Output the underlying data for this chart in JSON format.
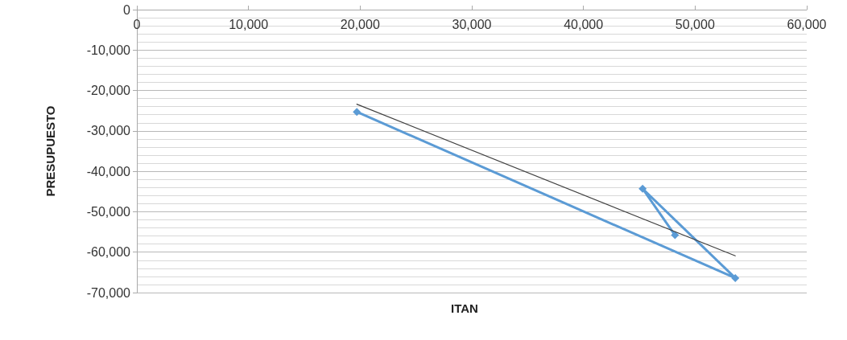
{
  "chart_data": {
    "type": "line",
    "xlabel": "ITAN",
    "ylabel": "PRESUPUESTO",
    "series": [
      {
        "color": "#5b9bd5",
        "x": [
          19700,
          53600,
          45300,
          48200
        ],
        "values": [
          -25300,
          -66400,
          -44300,
          -55800
        ],
        "marker": "diamond"
      },
      {
        "color": "#404040",
        "x": [
          19700,
          53600
        ],
        "values": [
          -23400,
          -60900
        ],
        "marker": "none"
      }
    ],
    "xlim": [
      0,
      60000
    ],
    "xticks": [
      {
        "value": 0,
        "label": "0"
      },
      {
        "value": 10000,
        "label": "10,000"
      },
      {
        "value": 20000,
        "label": "20,000"
      },
      {
        "value": 30000,
        "label": "30,000"
      },
      {
        "value": 40000,
        "label": "40,000"
      },
      {
        "value": 50000,
        "label": "50,000"
      },
      {
        "value": 60000,
        "label": "60,000"
      }
    ],
    "ylim": [
      -70000,
      0
    ],
    "yticks": [
      {
        "value": -70000,
        "label": "-70,000"
      },
      {
        "value": -60000,
        "label": "-60,000"
      },
      {
        "value": -50000,
        "label": "-50,000"
      },
      {
        "value": -40000,
        "label": "-40,000"
      },
      {
        "value": -30000,
        "label": "-30,000"
      },
      {
        "value": -20000,
        "label": "-20,000"
      },
      {
        "value": -10000,
        "label": "-10,000"
      },
      {
        "value": 0,
        "label": "0"
      }
    ],
    "grid": "y"
  }
}
